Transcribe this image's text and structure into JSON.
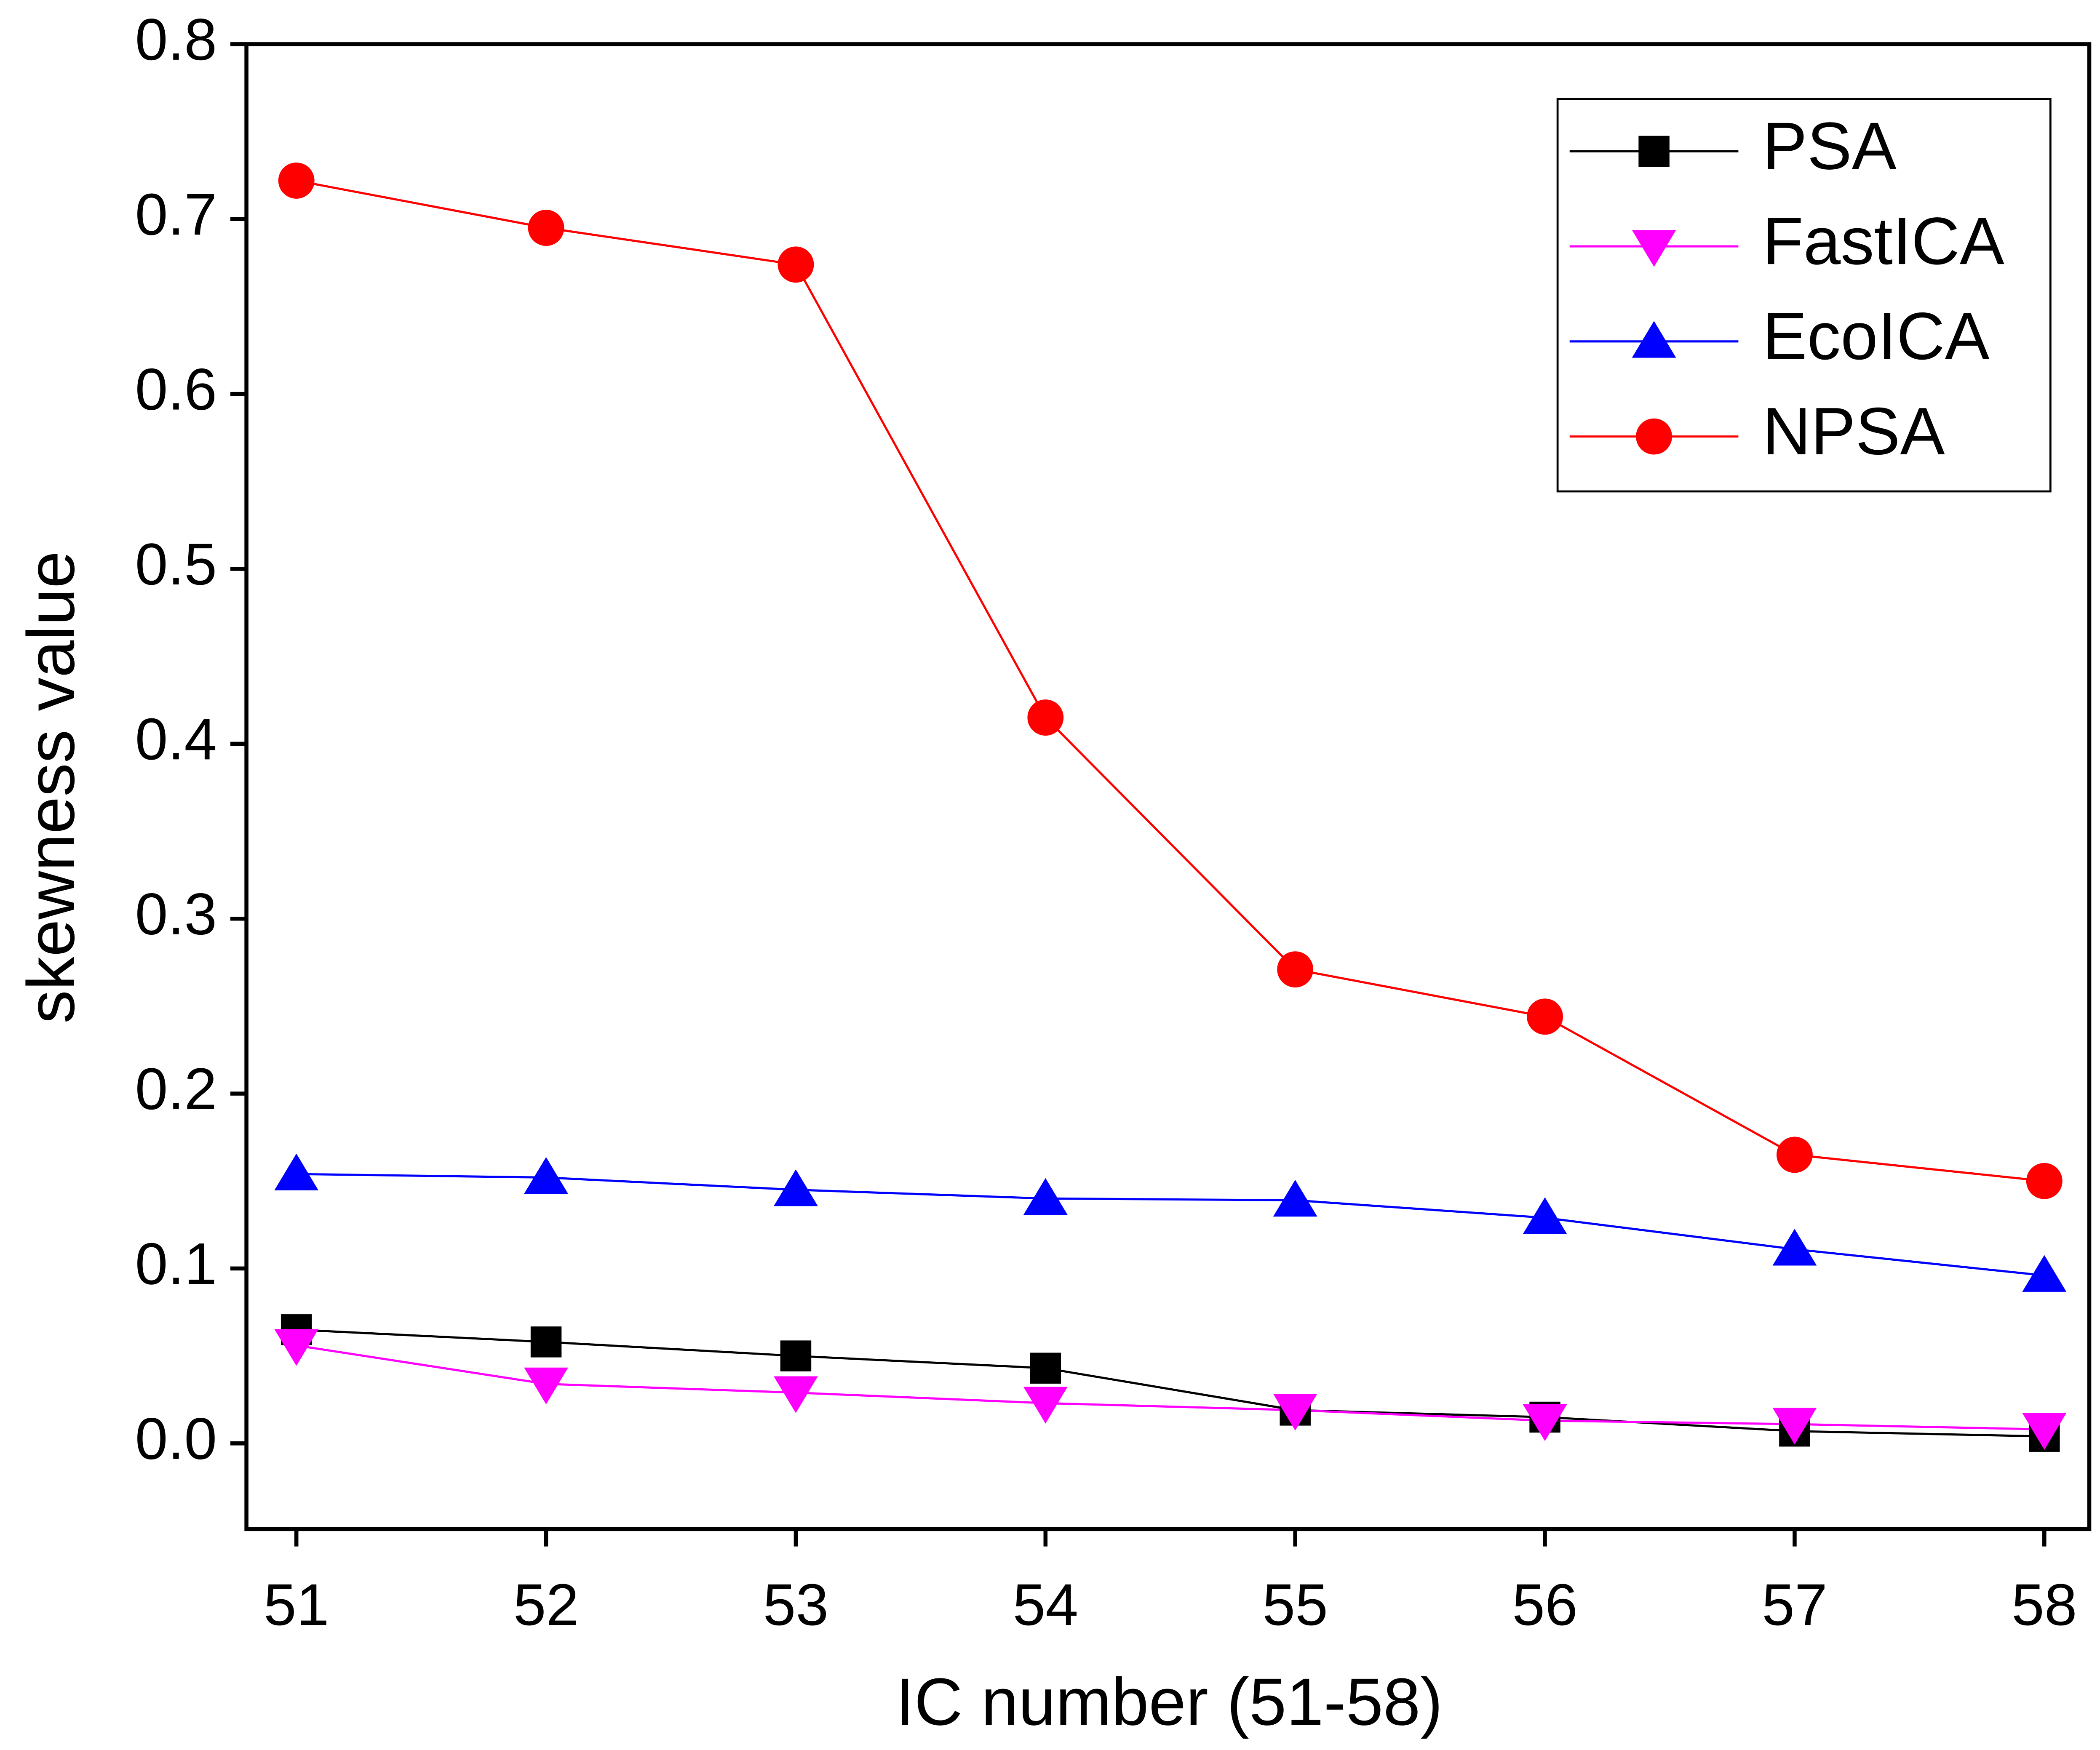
{
  "chart_data": {
    "type": "line",
    "x_label": "IC number (51-58)",
    "y_label": "skewness value",
    "x": [
      51,
      52,
      53,
      54,
      55,
      56,
      57,
      58
    ],
    "xlim": [
      50.8,
      58.18
    ],
    "xticks": [
      51,
      52,
      53,
      54,
      55,
      56,
      57,
      58
    ],
    "ylim": [
      -0.049,
      0.8
    ],
    "yticks": [
      {
        "value": 0,
        "label": "0.0"
      },
      0.1,
      0.2,
      0.3,
      0.4,
      0.5,
      0.6,
      0.7,
      0.8
    ],
    "legend": "upper right",
    "series": [
      {
        "name": "PSA",
        "color": "#000000",
        "marker": "square",
        "values": [
          0.065,
          0.058,
          0.05,
          0.043,
          0.019,
          0.015,
          0.007,
          0.004
        ]
      },
      {
        "name": "FastICA",
        "color": "#ff00ff",
        "marker": "triangle-down",
        "values": [
          0.056,
          0.034,
          0.029,
          0.023,
          0.019,
          0.013,
          0.011,
          0.008
        ]
      },
      {
        "name": "EcoICA",
        "color": "#0000ff",
        "marker": "triangle-up",
        "values": [
          0.154,
          0.152,
          0.145,
          0.14,
          0.139,
          0.129,
          0.111,
          0.096
        ]
      },
      {
        "name": "NPSA",
        "color": "#ff0000",
        "marker": "circle",
        "values": [
          0.722,
          0.695,
          0.674,
          0.415,
          0.271,
          0.244,
          0.165,
          0.15
        ]
      }
    ]
  }
}
